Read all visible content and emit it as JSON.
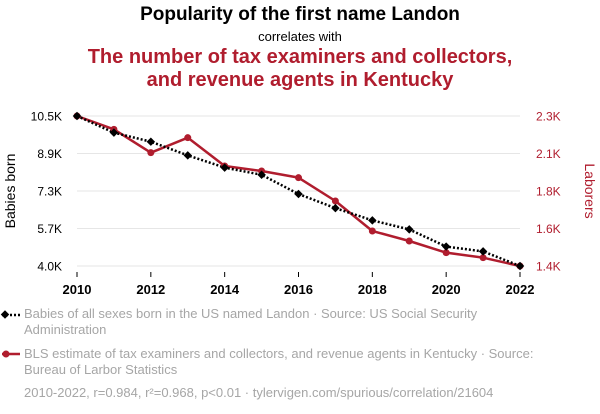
{
  "header": {
    "title": "Popularity of the first name Landon",
    "subtitle": "correlates with",
    "title2_line1": "The number of tax examiners and collectors,",
    "title2_line2": "and revenue agents in Kentucky"
  },
  "colors": {
    "series1": "#000000",
    "series2": "#b01d2e",
    "grid": "#e6e6e6",
    "muted": "#a6a6a6"
  },
  "chart_data": {
    "type": "line",
    "x": [
      2010,
      2011,
      2012,
      2013,
      2014,
      2015,
      2016,
      2017,
      2018,
      2019,
      2020,
      2021,
      2022
    ],
    "x_ticks": [
      "2010",
      "2012",
      "2014",
      "2016",
      "2018",
      "2020",
      "2022"
    ],
    "x_tick_values": [
      2010,
      2012,
      2014,
      2016,
      2018,
      2020,
      2022
    ],
    "y_left": {
      "label": "Babies born",
      "ticks": [
        "10.5K",
        "8.9K",
        "7.3K",
        "5.7K",
        "4.0K"
      ],
      "tick_values": [
        10500,
        8880,
        7260,
        5640,
        4020
      ],
      "range": [
        4020,
        10500
      ]
    },
    "y_right": {
      "label": "Laborers",
      "ticks": [
        "2.3K",
        "2.1K",
        "1.8K",
        "1.6K",
        "1.4K"
      ],
      "tick_values": [
        2300,
        2075,
        1850,
        1625,
        1400
      ],
      "range": [
        1400,
        2300
      ]
    },
    "series": [
      {
        "name": "Babies of all sexes born in the US named Landon",
        "axis": "left",
        "style": "dotted",
        "values": [
          10500,
          9780,
          9390,
          8800,
          8270,
          7960,
          7130,
          6520,
          5990,
          5600,
          4860,
          4650,
          4020
        ]
      },
      {
        "name": "BLS estimate of tax examiners and collectors, and revenue agents in Kentucky",
        "axis": "right",
        "style": "solid",
        "values": [
          2300,
          2220,
          2080,
          2170,
          2000,
          1970,
          1930,
          1790,
          1610,
          1550,
          1480,
          1450,
          1400
        ]
      }
    ],
    "grid": true
  },
  "legend": {
    "item1": "Babies of all sexes born in the US named Landon · Source: US Social Security Administration",
    "item2": "BLS estimate of tax examiners and collectors, and revenue agents in Kentucky · Source: Bureau of Larbor Statistics"
  },
  "footer": "2010-2022, r=0.984, r²=0.968, p<0.01 · tylervigen.com/spurious/correlation/21604"
}
